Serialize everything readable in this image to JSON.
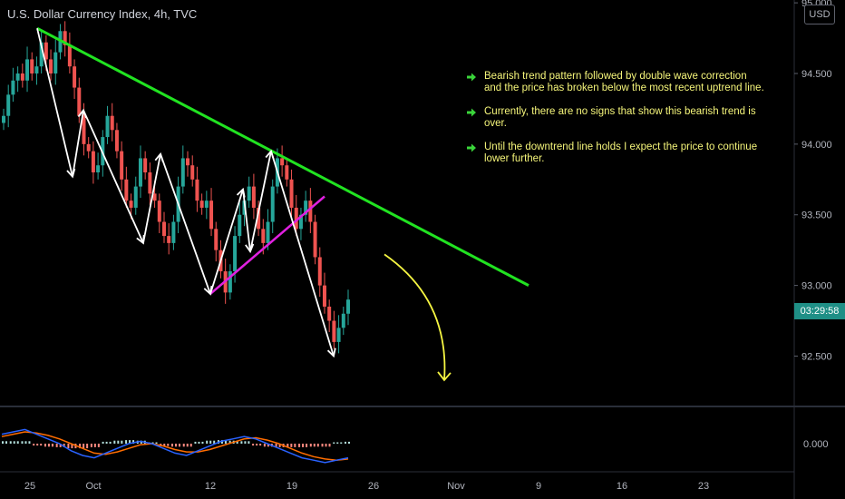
{
  "header": {
    "symbol_title": "U.S. Dollar Currency Index, 4h, TVC",
    "currency_badge": "USD"
  },
  "price_tag": {
    "countdown": "03:29:58"
  },
  "annotations": [
    "Bearish trend pattern followed by double wave correction\nand the price has broken below the most recent uptrend line.",
    "Currently, there are no signs that show this bearish trend is over.",
    "Until the downtrend line holds I expect the price to continue\nlower further."
  ],
  "colors": {
    "downtrend_line": "#21e321",
    "uptrend_line": "#e020e0",
    "wave_arrows": "#ffffff",
    "forecast_arrow": "#f5f542",
    "bull_candle": "#26a69a",
    "bear_candle": "#ef5350",
    "note_text": "#f5f57a",
    "note_arrow": "#3ad43a",
    "macd_line": "#2962ff",
    "signal_line": "#ff6d00"
  },
  "chart_data": {
    "type": "candlestick",
    "y_axis": {
      "ticks": [
        "95.000",
        "94.500",
        "94.000",
        "93.500",
        "93.000",
        "92.500"
      ],
      "range": [
        92.15,
        95.02
      ]
    },
    "x_axis": {
      "ticks": [
        "25",
        "Oct",
        "12",
        "19",
        "26",
        "Nov",
        "9",
        "16",
        "23"
      ]
    },
    "close_series": [
      94.2,
      94.35,
      94.45,
      94.5,
      94.45,
      94.6,
      94.5,
      94.55,
      94.72,
      94.6,
      94.5,
      94.65,
      94.8,
      94.7,
      94.55,
      94.4,
      94.2,
      94.0,
      93.95,
      93.8,
      93.85,
      94.05,
      94.2,
      94.1,
      93.95,
      93.75,
      93.6,
      93.55,
      93.7,
      93.9,
      93.8,
      93.65,
      93.6,
      93.45,
      93.35,
      93.3,
      93.45,
      93.7,
      93.9,
      93.85,
      93.75,
      93.6,
      93.55,
      93.6,
      93.4,
      93.25,
      93.1,
      92.95,
      93.1,
      93.35,
      93.5,
      93.6,
      93.7,
      93.55,
      93.4,
      93.3,
      93.45,
      93.7,
      93.9,
      93.85,
      93.75,
      93.55,
      93.4,
      93.5,
      93.6,
      93.45,
      93.2,
      93.0,
      92.85,
      92.75,
      92.6,
      92.7,
      92.8,
      92.9
    ],
    "drawings": {
      "downtrend_line": {
        "from": [
          "25",
          94.82
        ],
        "to": [
          "Nov+",
          93.0
        ]
      },
      "uptrend_line": {
        "from": [
          "12",
          92.94
        ],
        "to": [
          "20",
          93.63
        ]
      },
      "wave_path": [
        [
          "25",
          94.82
        ],
        [
          "1",
          93.77
        ],
        [
          "Oct",
          94.24
        ],
        [
          "7",
          93.3
        ],
        [
          "9",
          93.93
        ],
        [
          "12",
          92.94
        ],
        [
          "16",
          93.68
        ],
        [
          "16b",
          93.24
        ],
        [
          "18",
          93.95
        ],
        [
          "21",
          92.5
        ]
      ],
      "forecast_arrow": {
        "from": [
          "26",
          93.22
        ],
        "to": [
          "Nov",
          92.33
        ]
      }
    },
    "indicator": {
      "type": "macd",
      "y_ticks": [
        "0.000"
      ],
      "macd": [
        0.04,
        0.05,
        0.06,
        0.04,
        0.02,
        0.0,
        -0.03,
        -0.05,
        -0.06,
        -0.04,
        -0.02,
        0.0,
        0.01,
        0.0,
        -0.02,
        -0.04,
        -0.05,
        -0.03,
        -0.01,
        0.01,
        0.02,
        0.03,
        0.02,
        0.0,
        -0.02,
        -0.04,
        -0.06,
        -0.07,
        -0.08,
        -0.07,
        -0.06
      ],
      "signal": [
        0.03,
        0.04,
        0.05,
        0.045,
        0.035,
        0.02,
        0.0,
        -0.02,
        -0.04,
        -0.045,
        -0.035,
        -0.02,
        -0.005,
        0.0,
        -0.01,
        -0.025,
        -0.035,
        -0.035,
        -0.025,
        -0.01,
        0.005,
        0.02,
        0.025,
        0.015,
        0.0,
        -0.02,
        -0.04,
        -0.055,
        -0.065,
        -0.07,
        -0.065
      ]
    }
  }
}
